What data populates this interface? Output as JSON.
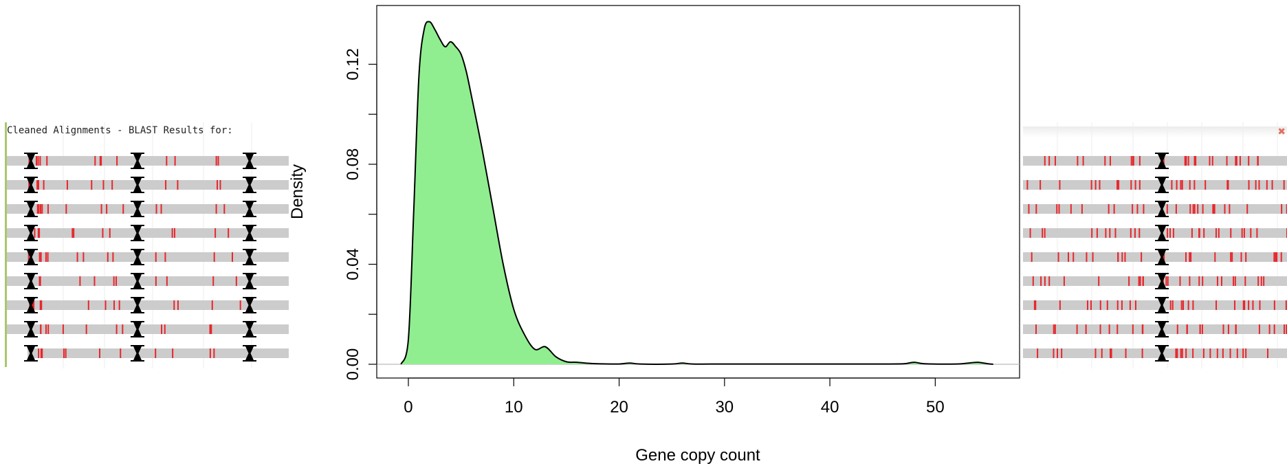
{
  "left_panel": {
    "title": "Cleaned Alignments - BLAST Results for: ",
    "colors": {
      "track": "#cccccc",
      "hit": "#e8262c",
      "marker": "#000000",
      "accent": "#a7c86b"
    }
  },
  "right_panel": {
    "close_icon": "close-icon",
    "close_glyph": "✖"
  },
  "chart_data": {
    "type": "area",
    "title": "",
    "xlabel": "Gene copy count",
    "ylabel": "Density",
    "xlim": [
      -3,
      58
    ],
    "ylim": [
      -0.0055,
      0.1435
    ],
    "x_ticks": [
      0,
      10,
      20,
      30,
      40,
      50
    ],
    "y_ticks": [
      0.0,
      0.04,
      0.08,
      0.12
    ],
    "y_tick_labels": [
      "0.00",
      "0.04",
      "0.08",
      "0.12"
    ],
    "fill_color": "#90ee90",
    "line_color": "#000000",
    "baseline_color": "#bbbbbb",
    "grid": false,
    "series": [
      {
        "x": [
          -0.7,
          0,
          0.5,
          1,
          1.5,
          2,
          2.5,
          3,
          3.5,
          4,
          4.5,
          5,
          5.5,
          6,
          7,
          8,
          9,
          10,
          11,
          12,
          13,
          14,
          15,
          16,
          17,
          18,
          20,
          21,
          22,
          25,
          26,
          27,
          30,
          35,
          40,
          45,
          47,
          48,
          49,
          52,
          53,
          54,
          55,
          55.5
        ],
        "y": [
          0.0,
          0.01,
          0.06,
          0.115,
          0.134,
          0.137,
          0.134,
          0.13,
          0.127,
          0.129,
          0.127,
          0.124,
          0.117,
          0.107,
          0.086,
          0.063,
          0.04,
          0.022,
          0.012,
          0.006,
          0.007,
          0.003,
          0.001,
          0.0008,
          0.0004,
          0.0002,
          0.0001,
          0.0005,
          0.0001,
          0.0001,
          0.0005,
          0.0001,
          0.0001,
          0.0001,
          0.0001,
          0.0001,
          0.0002,
          0.0008,
          0.0002,
          0.0001,
          0.0004,
          0.0008,
          0.0002,
          0.0
        ]
      }
    ]
  }
}
